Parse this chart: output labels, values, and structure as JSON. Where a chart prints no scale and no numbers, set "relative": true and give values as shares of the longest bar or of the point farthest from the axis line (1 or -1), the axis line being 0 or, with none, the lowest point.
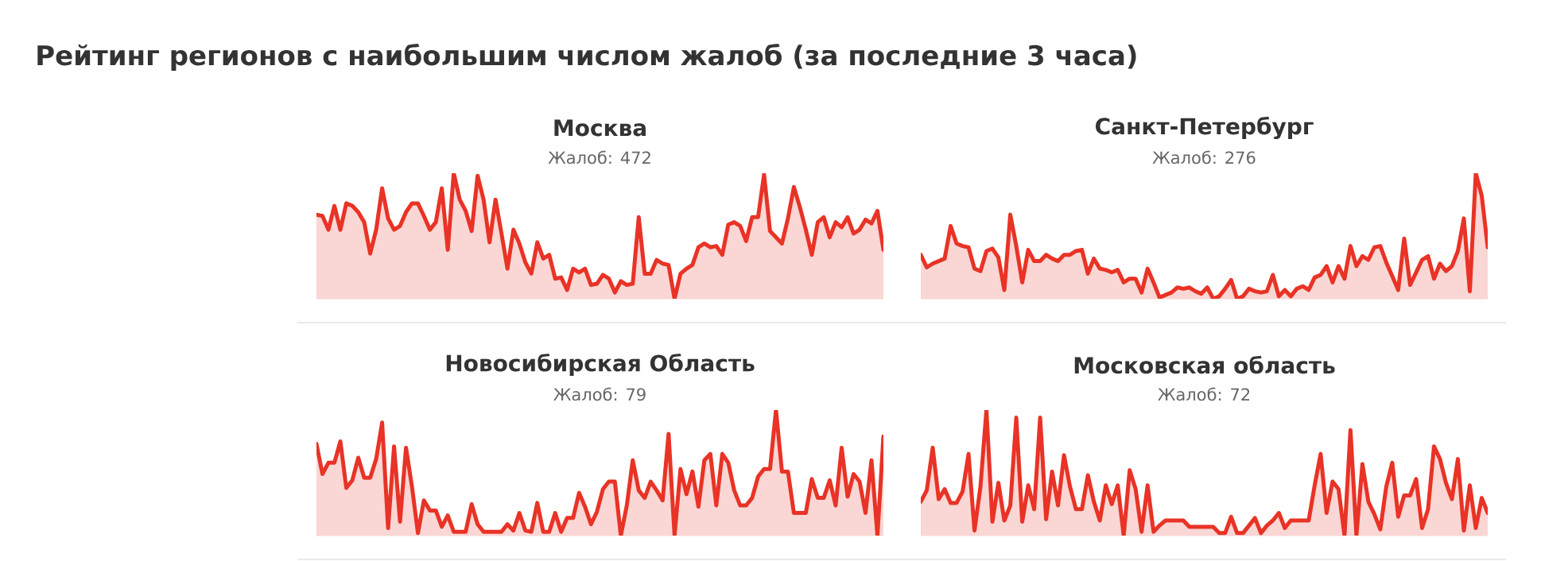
{
  "chart_data": [
    {
      "type": "other",
      "title": "Рейтинг регионов с наибольшим числом жалоб (за последние 3 часа)"
    },
    {
      "type": "area",
      "title": "Москва",
      "subtitle": "Жалоб: 472",
      "relative": true,
      "color": "#e83326",
      "categories": [
        null,
        null,
        null,
        null,
        null,
        null,
        null,
        null,
        null,
        null,
        null,
        null,
        null,
        null,
        null,
        null,
        null,
        null,
        null,
        null,
        null,
        null,
        null,
        null,
        null,
        null,
        null,
        null,
        null,
        null,
        null,
        null,
        null,
        null,
        null,
        null,
        null,
        null,
        null,
        null,
        null,
        null,
        null,
        null,
        null,
        null,
        null,
        null,
        null,
        null,
        null,
        null,
        null,
        null,
        null,
        null,
        null,
        null,
        null,
        null,
        null,
        null,
        null,
        null,
        null,
        null,
        null,
        null,
        null,
        null,
        null,
        null,
        null,
        null,
        null,
        null,
        null,
        null,
        null,
        null,
        null,
        null,
        null,
        null,
        null,
        null,
        null,
        null,
        null,
        null,
        null,
        null,
        null,
        null,
        null,
        null
      ],
      "values": [
        0.67,
        0.66,
        0.55,
        0.74,
        0.55,
        0.76,
        0.74,
        0.69,
        0.61,
        0.36,
        0.55,
        0.88,
        0.64,
        0.55,
        0.58,
        0.69,
        0.76,
        0.76,
        0.66,
        0.55,
        0.61,
        0.88,
        0.39,
        1,
        0.79,
        0.7,
        0.54,
        0.98,
        0.79,
        0.45,
        0.79,
        0.52,
        0.24,
        0.55,
        0.44,
        0.29,
        0.2,
        0.45,
        0.32,
        0.35,
        0.16,
        0.17,
        0.07,
        0.24,
        0.21,
        0.24,
        0.11,
        0.12,
        0.19,
        0.16,
        0.05,
        0.14,
        0.11,
        0.12,
        0.65,
        0.2,
        0.2,
        0.31,
        0.28,
        0.27,
        0,
        0.2,
        0.24,
        0.27,
        0.41,
        0.44,
        0.41,
        0.42,
        0.35,
        0.59,
        0.61,
        0.58,
        0.46,
        0.65,
        0.65,
        0.99,
        0.54,
        0.49,
        0.44,
        0.64,
        0.89,
        0.73,
        0.55,
        0.35,
        0.61,
        0.65,
        0.49,
        0.61,
        0.57,
        0.65,
        0.52,
        0.55,
        0.63,
        0.6,
        0.7,
        0.39
      ]
    },
    {
      "type": "area",
      "title": "Санкт-Петербург",
      "subtitle": "Жалоб: 276",
      "relative": true,
      "color": "#e83326",
      "categories": [
        null,
        null,
        null,
        null,
        null,
        null,
        null,
        null,
        null,
        null,
        null,
        null,
        null,
        null,
        null,
        null,
        null,
        null,
        null,
        null,
        null,
        null,
        null,
        null,
        null,
        null,
        null,
        null,
        null,
        null,
        null,
        null,
        null,
        null,
        null,
        null,
        null,
        null,
        null,
        null,
        null,
        null,
        null,
        null,
        null,
        null,
        null,
        null,
        null,
        null,
        null,
        null,
        null,
        null,
        null,
        null,
        null,
        null,
        null,
        null,
        null,
        null,
        null,
        null,
        null,
        null,
        null,
        null,
        null,
        null,
        null,
        null,
        null,
        null,
        null,
        null,
        null,
        null,
        null,
        null,
        null,
        null,
        null,
        null,
        null,
        null,
        null,
        null,
        null,
        null,
        null,
        null,
        null,
        null,
        null,
        null
      ],
      "values": [
        0.35,
        0.25,
        0.28,
        0.3,
        0.32,
        0.58,
        0.44,
        0.42,
        0.41,
        0.24,
        0.22,
        0.38,
        0.4,
        0.33,
        0.07,
        0.67,
        0.42,
        0.13,
        0.39,
        0.3,
        0.3,
        0.35,
        0.32,
        0.3,
        0.35,
        0.35,
        0.38,
        0.39,
        0.2,
        0.32,
        0.24,
        0.23,
        0.21,
        0.23,
        0.13,
        0.16,
        0.16,
        0.05,
        0.24,
        0.13,
        0.01,
        0.03,
        0.05,
        0.09,
        0.08,
        0.09,
        0.06,
        0.04,
        0.09,
        0,
        0.02,
        0.08,
        0.15,
        0,
        0.02,
        0.08,
        0.06,
        0.05,
        0.06,
        0.19,
        0.02,
        0.07,
        0.02,
        0.08,
        0.1,
        0.07,
        0.17,
        0.19,
        0.26,
        0.13,
        0.26,
        0.16,
        0.42,
        0.26,
        0.34,
        0.31,
        0.41,
        0.42,
        0.29,
        0.18,
        0.07,
        0.48,
        0.11,
        0.21,
        0.31,
        0.34,
        0.16,
        0.28,
        0.22,
        0.26,
        0.38,
        0.64,
        0.06,
        1,
        0.82,
        0.41
      ]
    },
    {
      "type": "area",
      "title": "Новосибирская Область",
      "subtitle": "Жалоб: 79",
      "relative": true,
      "color": "#e83326",
      "categories": [
        null,
        null,
        null,
        null,
        null,
        null,
        null,
        null,
        null,
        null,
        null,
        null,
        null,
        null,
        null,
        null,
        null,
        null,
        null,
        null,
        null,
        null,
        null,
        null,
        null,
        null,
        null,
        null,
        null,
        null,
        null,
        null,
        null,
        null,
        null,
        null,
        null,
        null,
        null,
        null,
        null,
        null,
        null,
        null,
        null,
        null,
        null,
        null,
        null,
        null,
        null,
        null,
        null,
        null,
        null,
        null,
        null,
        null,
        null,
        null,
        null,
        null,
        null,
        null,
        null,
        null,
        null,
        null,
        null,
        null,
        null,
        null,
        null,
        null,
        null,
        null,
        null,
        null,
        null,
        null,
        null,
        null,
        null,
        null,
        null,
        null,
        null,
        null,
        null,
        null,
        null,
        null,
        null,
        null,
        null,
        null
      ],
      "values": [
        0.73,
        0.49,
        0.58,
        0.58,
        0.75,
        0.38,
        0.44,
        0.62,
        0.46,
        0.46,
        0.61,
        0.9,
        0.06,
        0.71,
        0.11,
        0.7,
        0.39,
        0.02,
        0.28,
        0.2,
        0.2,
        0.07,
        0.16,
        0.03,
        0.03,
        0.03,
        0.25,
        0.09,
        0.03,
        0.03,
        0.03,
        0.03,
        0.09,
        0.04,
        0.18,
        0.04,
        0.03,
        0.26,
        0.03,
        0.03,
        0.18,
        0.03,
        0.14,
        0.14,
        0.34,
        0.23,
        0.09,
        0.19,
        0.37,
        0.43,
        0.43,
        0,
        0.24,
        0.6,
        0.36,
        0.3,
        0.43,
        0.36,
        0.28,
        0.81,
        0,
        0.53,
        0.33,
        0.51,
        0.23,
        0.6,
        0.65,
        0.24,
        0.65,
        0.58,
        0.36,
        0.24,
        0.24,
        0.3,
        0.47,
        0.53,
        0.53,
        1,
        0.51,
        0.51,
        0.18,
        0.18,
        0.18,
        0.45,
        0.3,
        0.3,
        0.44,
        0.24,
        0.7,
        0.31,
        0.49,
        0.43,
        0.18,
        0.6,
        0,
        0.79
      ]
    },
    {
      "type": "area",
      "title": "Московская область",
      "subtitle": "Жалоб: 72",
      "relative": true,
      "color": "#e83326",
      "categories": [
        null,
        null,
        null,
        null,
        null,
        null,
        null,
        null,
        null,
        null,
        null,
        null,
        null,
        null,
        null,
        null,
        null,
        null,
        null,
        null,
        null,
        null,
        null,
        null,
        null,
        null,
        null,
        null,
        null,
        null,
        null,
        null,
        null,
        null,
        null,
        null,
        null,
        null,
        null,
        null,
        null,
        null,
        null,
        null,
        null,
        null,
        null,
        null,
        null,
        null,
        null,
        null,
        null,
        null,
        null,
        null,
        null,
        null,
        null,
        null,
        null,
        null,
        null,
        null,
        null,
        null,
        null,
        null,
        null,
        null,
        null,
        null,
        null,
        null,
        null,
        null,
        null,
        null,
        null,
        null,
        null,
        null,
        null,
        null,
        null,
        null,
        null,
        null,
        null,
        null,
        null,
        null,
        null,
        null,
        null,
        null
      ],
      "values": [
        0.27,
        0.36,
        0.7,
        0.29,
        0.37,
        0.26,
        0.26,
        0.35,
        0.65,
        0.04,
        0.39,
        1,
        0.11,
        0.42,
        0.12,
        0.24,
        0.94,
        0.11,
        0.4,
        0.21,
        0.94,
        0.13,
        0.51,
        0.24,
        0.64,
        0.39,
        0.21,
        0.21,
        0.48,
        0.27,
        0.12,
        0.4,
        0.25,
        0.4,
        0,
        0.52,
        0.37,
        0.03,
        0.4,
        0.03,
        0.08,
        0.12,
        0.12,
        0.12,
        0.12,
        0.07,
        0.07,
        0.07,
        0.07,
        0.07,
        0.02,
        0.02,
        0.15,
        0.02,
        0.02,
        0.08,
        0.14,
        0.02,
        0.08,
        0.12,
        0.18,
        0.06,
        0.12,
        0.12,
        0.12,
        0.12,
        0.4,
        0.65,
        0.18,
        0.43,
        0.37,
        0,
        0.84,
        0,
        0.57,
        0.27,
        0.17,
        0.05,
        0.39,
        0.58,
        0.15,
        0.32,
        0.32,
        0.45,
        0.06,
        0.21,
        0.71,
        0.61,
        0.42,
        0.29,
        0.61,
        0.04,
        0.4,
        0.06,
        0.3,
        0.18
      ]
    }
  ]
}
